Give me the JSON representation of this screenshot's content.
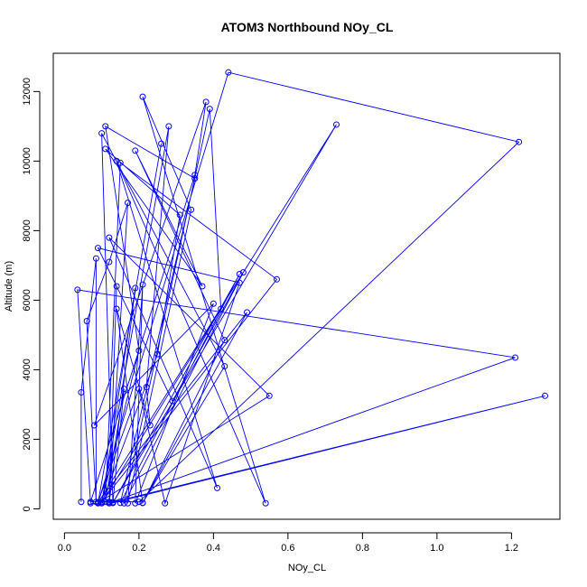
{
  "chart_data": {
    "type": "line",
    "title": "ATOM3 Northbound NOy_CL",
    "xlabel": "NOy_CL",
    "ylabel": "Altitude (m)",
    "xlim": [
      -0.03,
      1.33
    ],
    "ylim": [
      -300,
      13100
    ],
    "x_ticks": [
      0.0,
      0.2,
      0.4,
      0.6,
      0.8,
      1.0,
      1.2
    ],
    "x_tick_labels": [
      "0.0",
      "0.2",
      "0.4",
      "0.6",
      "0.8",
      "1.0",
      "1.2"
    ],
    "y_ticks": [
      0,
      2000,
      4000,
      6000,
      8000,
      10000,
      12000
    ],
    "y_tick_labels": [
      "0",
      "2000",
      "4000",
      "6000",
      "8000",
      "10000",
      "12000"
    ],
    "grid": false,
    "series": [
      {
        "color": "#0000ff",
        "marker": "open-circle",
        "x": [
          0.045,
          0.045,
          0.085,
          0.085,
          0.06,
          0.12,
          0.17,
          0.12,
          0.14,
          0.12,
          0.19,
          0.1,
          0.25,
          0.31,
          0.11,
          0.37,
          0.19,
          0.43,
          0.21,
          0.14,
          0.23,
          0.22,
          0.28,
          0.1,
          0.42,
          0.39,
          0.16,
          0.48,
          0.29,
          0.09,
          0.47,
          0.27,
          0.2,
          0.09,
          0.49,
          0.21,
          0.43,
          0.1,
          0.13,
          0.16,
          0.11,
          0.15,
          0.57,
          0.1,
          0.2,
          0.11,
          0.35,
          0.15,
          0.47,
          0.13,
          0.07,
          0.035,
          1.21,
          0.12,
          1.29,
          0.13,
          0.73,
          0.09,
          0.55,
          0.12,
          0.41,
          0.14,
          0.54,
          0.21,
          0.34,
          0.17,
          0.21,
          0.19,
          0.4,
          0.08,
          0.38,
          0.35,
          0.07,
          0.2,
          1.22,
          0.44,
          0.09,
          0.26
        ],
        "y": [
          200,
          3350,
          7200,
          200,
          5400,
          7100,
          8800,
          200,
          6400,
          160,
          6350,
          160,
          4450,
          8450,
          10350,
          6400,
          10300,
          4850,
          170,
          5750,
          2400,
          3500,
          11000,
          170,
          5750,
          11500,
          160,
          6800,
          3100,
          7500,
          6500,
          160,
          3450,
          190,
          5650,
          170,
          4100,
          10800,
          190,
          3450,
          200,
          9950,
          6600,
          200,
          4550,
          11000,
          9500,
          170,
          6750,
          170,
          160,
          6300,
          4350,
          170,
          3250,
          170,
          11050,
          170,
          3250,
          7800,
          600,
          10000,
          160,
          11850,
          8600,
          160,
          6450,
          160,
          5900,
          2400,
          11700,
          9600,
          200,
          200,
          10550,
          12550,
          160,
          10500
        ]
      }
    ]
  }
}
